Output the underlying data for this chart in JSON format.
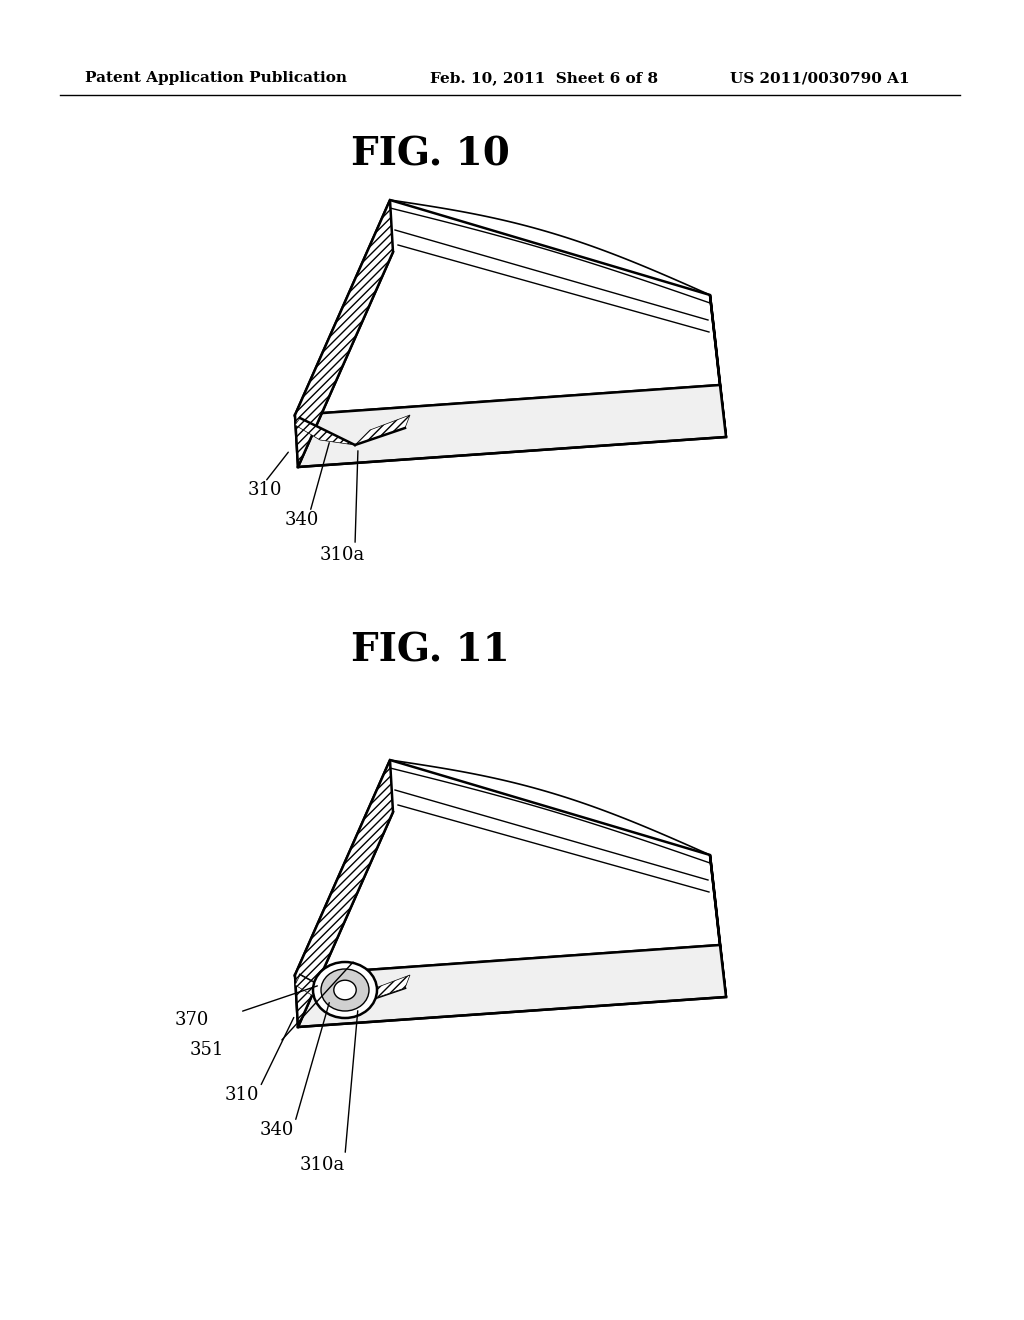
{
  "background_color": "#ffffff",
  "header_left": "Patent Application Publication",
  "header_center": "Feb. 10, 2011  Sheet 6 of 8",
  "header_right": "US 2011/0030790 A1",
  "fig10_title": "FIG. 10",
  "fig11_title": "FIG. 11",
  "label_310": "310",
  "label_340": "340",
  "label_310a": "310a",
  "label_351": "351",
  "label_370": "370"
}
